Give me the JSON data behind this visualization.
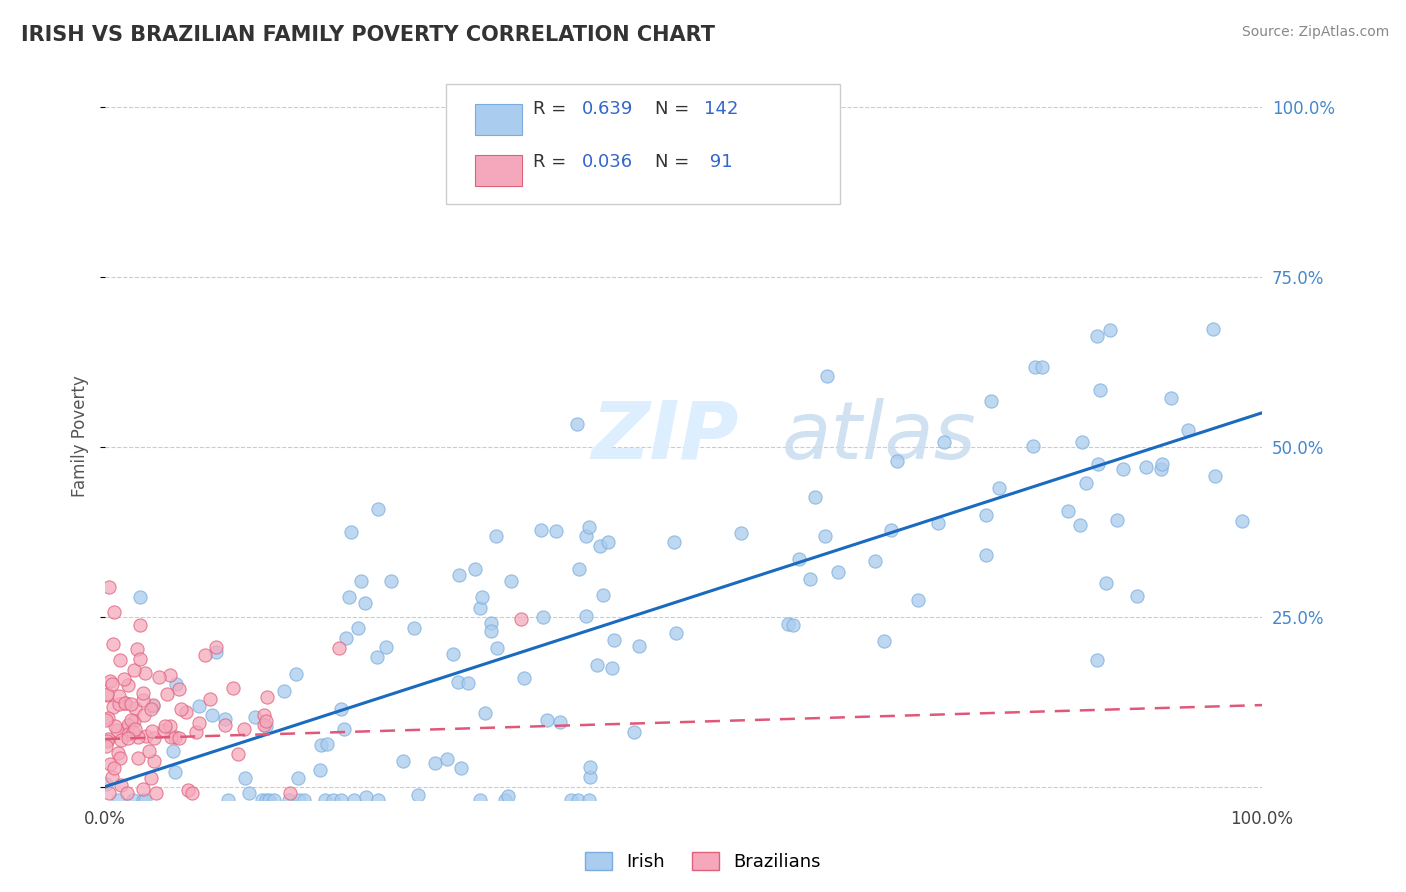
{
  "title": "IRISH VS BRAZILIAN FAMILY POVERTY CORRELATION CHART",
  "source": "Source: ZipAtlas.com",
  "ylabel": "Family Poverty",
  "xlim": [
    0.0,
    1.0
  ],
  "ylim": [
    -0.02,
    1.05
  ],
  "y_ticks": [
    0.0,
    0.25,
    0.5,
    0.75,
    1.0
  ],
  "y_tick_labels": [
    "",
    "25.0%",
    "50.0%",
    "75.0%",
    "100.0%"
  ],
  "x_ticks": [
    0.0,
    1.0
  ],
  "x_tick_labels": [
    "0.0%",
    "100.0%"
  ],
  "irish_color": "#aaccee",
  "irish_edge_color": "#7aaddd",
  "brazilian_color": "#f5a8bc",
  "brazilian_edge_color": "#e0607a",
  "irish_line_color": "#1a6bbf",
  "brazilian_line_color": "#e05878",
  "irish_R": 0.639,
  "irish_N": 142,
  "brazilian_R": 0.036,
  "brazilian_N": 91,
  "background_color": "#ffffff",
  "grid_color": "#cccccc",
  "legend_irish": "Irish",
  "legend_brazilian": "Brazilians",
  "title_color": "#333333",
  "source_color": "#888888",
  "ylabel_color": "#555555",
  "right_tick_color": "#4488cc",
  "watermark_color": "#ddeeff",
  "irish_line_y0": 0.0,
  "irish_line_y1": 0.55,
  "braz_line_y0": 0.07,
  "braz_line_y1": 0.12
}
